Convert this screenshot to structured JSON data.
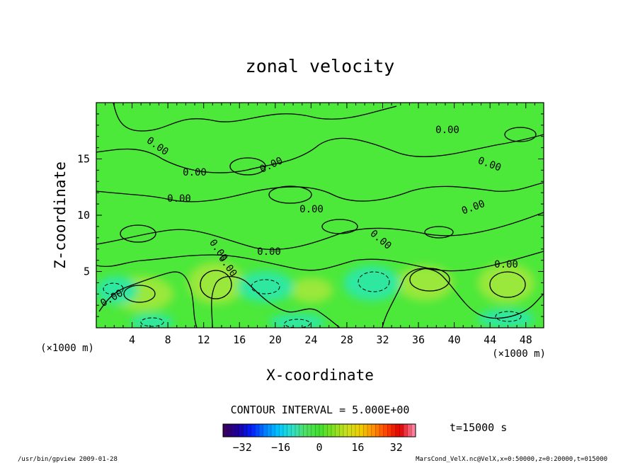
{
  "chart_data": {
    "type": "heatmap",
    "title": "zonal velocity",
    "xlabel": "X-coordinate",
    "ylabel": "Z-coordinate",
    "x_unit_left": "(×1000 m)",
    "x_unit_right": "(×1000 m)",
    "xlim": [
      0,
      50
    ],
    "ylim": [
      0,
      20
    ],
    "x_ticks": [
      4,
      8,
      12,
      16,
      20,
      24,
      28,
      32,
      36,
      40,
      44,
      48
    ],
    "y_ticks": [
      5,
      10,
      15
    ],
    "contour_interval_label": "CONTOUR INTERVAL = 5.000E+00",
    "contour_labels": [
      "0.00",
      "0.00",
      "0.00",
      "0.00",
      "0.00",
      "0.00",
      "0.00",
      "0.00",
      "0.00",
      "0.00",
      "0.00",
      "0.00",
      "0.00",
      "0.00"
    ],
    "colorbar": {
      "range": [
        -40,
        40
      ],
      "ticks": [
        -32,
        -16,
        0,
        16,
        32
      ],
      "colors": [
        "#3a0060",
        "#1a00a0",
        "#0020ff",
        "#0080ff",
        "#00c8ff",
        "#30e0c8",
        "#50e060",
        "#40e030",
        "#80e020",
        "#c8e020",
        "#f0d000",
        "#ff9000",
        "#ff4000",
        "#e00000",
        "#ff80a0"
      ]
    },
    "time_label": "t=15000 s",
    "field_colors": {
      "background": "#4ce83a",
      "positive": "#9ae83a",
      "negative": "#2ee8a0"
    }
  },
  "footer": {
    "left": "/usr/bin/gpview  2009-01-28",
    "right": "MarsCond_VelX.nc@VelX,x=0:50000,z=0:20000,t=015000"
  }
}
